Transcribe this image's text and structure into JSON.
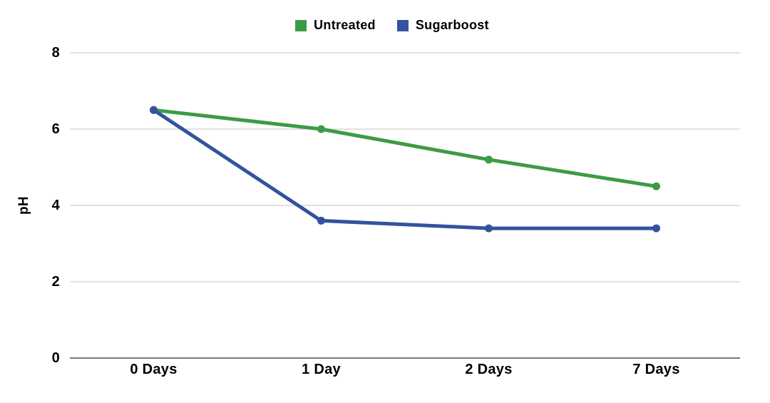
{
  "chart_data": {
    "type": "line",
    "title": "",
    "xlabel": "",
    "ylabel": "pH",
    "categories": [
      "0 Days",
      "1 Day",
      "2 Days",
      "7 Days"
    ],
    "series": [
      {
        "name": "Untreated",
        "color": "#3d9b46",
        "values": [
          6.5,
          6.0,
          5.2,
          4.5
        ]
      },
      {
        "name": "Sugarboost",
        "color": "#33539e",
        "values": [
          6.5,
          3.6,
          3.4,
          3.4
        ]
      }
    ],
    "ylim": [
      0,
      8
    ],
    "yticks": [
      0,
      2,
      4,
      6,
      8
    ],
    "grid": true,
    "legend_position": "top-center",
    "gridline_color": "#d8d8d8",
    "axis_line_color": "#777777",
    "text_color": "#000000",
    "background_color": "#ffffff",
    "marker": "circle",
    "line_width": 5
  }
}
